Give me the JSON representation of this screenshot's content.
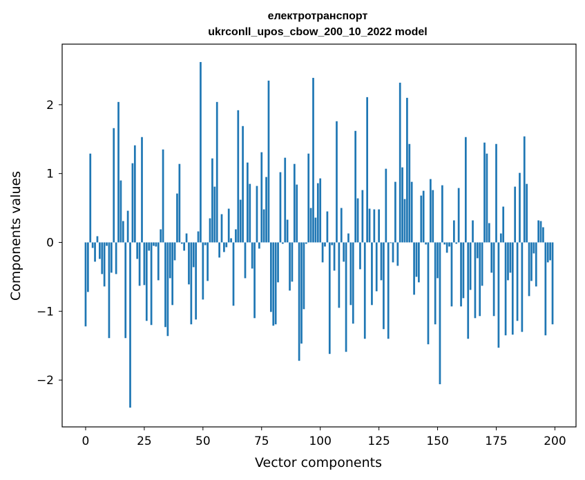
{
  "chart_data": {
    "type": "bar",
    "title_line1": "електротранспорт",
    "title_line2": "ukrconll_upos_cbow_200_10_2022 model",
    "xlabel": "Vector components",
    "ylabel": "Components values",
    "xlim": [
      -10,
      209
    ],
    "ylim": [
      -2.68,
      2.88
    ],
    "xticks": [
      0,
      25,
      50,
      75,
      100,
      125,
      150,
      175,
      200
    ],
    "xtick_labels": [
      "0",
      "25",
      "50",
      "75",
      "100",
      "125",
      "150",
      "175",
      "200"
    ],
    "yticks": [
      -2,
      -1,
      0,
      1,
      2
    ],
    "ytick_labels": [
      "−2",
      "−1",
      "0",
      "1",
      "2"
    ],
    "bar_color": "#1f77b4",
    "grid": false,
    "legend": "none",
    "values": [
      -1.22,
      -0.72,
      1.29,
      -0.08,
      -0.28,
      0.09,
      -0.24,
      -0.46,
      -0.64,
      -0.05,
      -1.39,
      -0.44,
      1.66,
      -0.46,
      2.04,
      0.9,
      0.31,
      -1.39,
      0.46,
      -2.4,
      1.15,
      1.41,
      -0.24,
      -0.63,
      1.53,
      -0.62,
      -1.14,
      -0.12,
      -1.2,
      -0.05,
      -0.06,
      -0.55,
      0.19,
      1.35,
      -1.23,
      -1.36,
      -0.52,
      -0.91,
      -0.26,
      0.71,
      1.14,
      -0.02,
      -0.12,
      0.13,
      -0.61,
      -1.19,
      -0.36,
      -1.12,
      0.16,
      2.62,
      -0.83,
      -0.04,
      -0.56,
      0.35,
      1.22,
      0.81,
      2.04,
      -0.22,
      0.41,
      -0.14,
      -0.07,
      0.49,
      0.06,
      -0.92,
      0.19,
      1.92,
      0.62,
      1.69,
      -0.52,
      1.16,
      0.85,
      -0.38,
      -1.1,
      0.82,
      -0.09,
      1.31,
      0.48,
      0.95,
      2.35,
      -1.01,
      -1.21,
      -1.19,
      -0.58,
      1.02,
      -0.02,
      1.23,
      0.33,
      -0.7,
      -0.57,
      1.14,
      0.84,
      -1.72,
      -1.47,
      -0.97,
      -0.02,
      1.29,
      0.5,
      2.39,
      0.36,
      0.86,
      0.93,
      -0.29,
      -0.06,
      0.45,
      -1.62,
      -0.04,
      -0.41,
      1.76,
      -0.95,
      0.5,
      -0.28,
      -1.59,
      0.13,
      -0.91,
      -1.18,
      1.62,
      0.64,
      -0.39,
      0.76,
      -1.4,
      2.11,
      0.49,
      -0.91,
      0.48,
      -0.71,
      0.48,
      -0.55,
      -1.26,
      1.07,
      -1.4,
      -0.01,
      -0.29,
      0.88,
      -0.34,
      2.32,
      1.09,
      0.63,
      2.1,
      1.43,
      0.88,
      -0.76,
      -0.5,
      -0.58,
      0.68,
      0.75,
      -0.03,
      -1.48,
      0.92,
      0.76,
      -1.19,
      -0.52,
      -2.06,
      0.83,
      -0.03,
      -0.15,
      -0.06,
      -0.93,
      0.32,
      -0.02,
      0.79,
      -0.93,
      -0.81,
      1.53,
      -1.4,
      -0.69,
      0.32,
      -1.1,
      -0.23,
      -1.07,
      -0.63,
      1.45,
      1.29,
      0.28,
      -0.44,
      -1.07,
      1.43,
      -1.53,
      0.13,
      0.52,
      -1.35,
      -0.55,
      -0.44,
      -1.34,
      0.81,
      -1.14,
      1.01,
      -1.3,
      1.54,
      0.85,
      -0.78,
      -0.56,
      -0.16,
      -0.64,
      0.32,
      0.31,
      0.22,
      -1.35,
      -0.29,
      -0.26,
      -1.19
    ]
  }
}
